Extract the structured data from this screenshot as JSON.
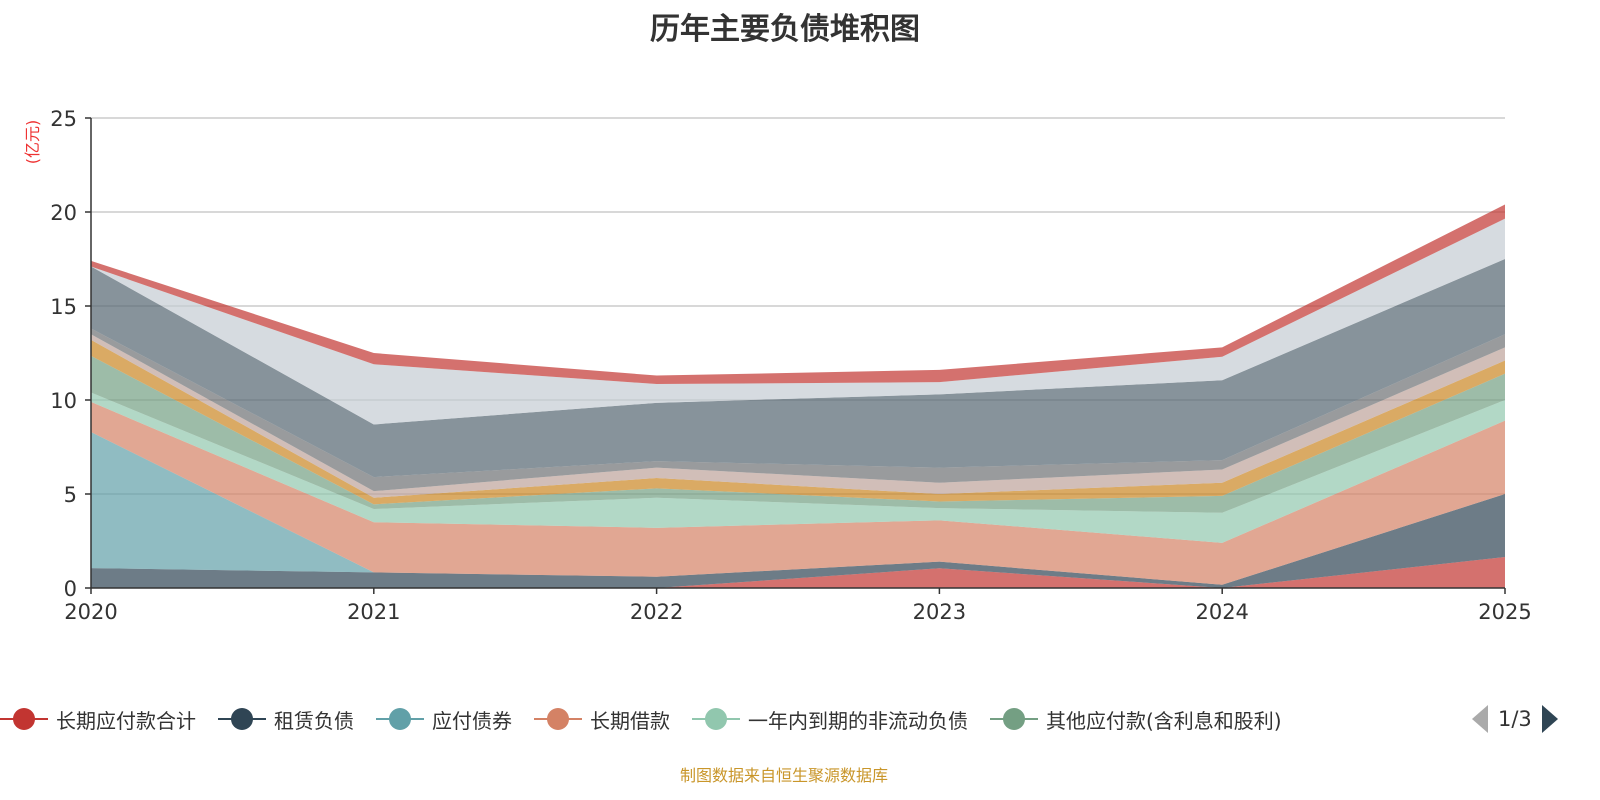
{
  "chart_data": {
    "type": "area",
    "stacked": true,
    "title": "历年主要负债堆积图",
    "ylabel": "(亿元)",
    "xlabel": "",
    "categories": [
      "2020",
      "2021",
      "2022",
      "2023",
      "2024",
      "2025"
    ],
    "ylim": [
      0,
      25
    ],
    "yticks": [
      "0",
      "5",
      "10",
      "15",
      "20",
      "25"
    ],
    "grid": true,
    "legend_position": "bottom",
    "series": [
      {
        "name": "长期应付款合计",
        "color": "#c23531",
        "values": [
          0,
          0,
          0,
          1.05,
          0,
          1.65
        ]
      },
      {
        "name": "租赁负债",
        "color": "#2f4554",
        "values": [
          1.06,
          0.83,
          0.6,
          0.35,
          0.17,
          3.35
        ]
      },
      {
        "name": "应付债券",
        "color": "#61a0a8",
        "values": [
          7.24,
          0,
          0,
          0,
          0,
          0
        ]
      },
      {
        "name": "长期借款",
        "color": "#d48265",
        "values": [
          1.6,
          2.67,
          2.6,
          2.2,
          2.23,
          3.9
        ]
      },
      {
        "name": "一年内到期的非流动负债",
        "color": "#91c7ae",
        "values": [
          0.5,
          0.7,
          1.6,
          0.65,
          1.6,
          1.1
        ]
      },
      {
        "name": "其他应付款(含利息和股利)",
        "color": "#749f83",
        "values": [
          1.95,
          0.25,
          0.5,
          0.35,
          0.9,
          1.4
        ]
      },
      {
        "color": "#ca8622",
        "values": [
          0.85,
          0.35,
          0.55,
          0.4,
          0.7,
          0.7
        ]
      },
      {
        "color": "#bda29a",
        "values": [
          0.3,
          0.35,
          0.55,
          0.6,
          0.7,
          0.7
        ]
      },
      {
        "color": "#6e7074",
        "values": [
          0.3,
          0.75,
          0.35,
          0.8,
          0.5,
          0.7
        ]
      },
      {
        "color": "#546570",
        "values": [
          3.3,
          2.8,
          3.1,
          3.9,
          4.25,
          4.0
        ]
      },
      {
        "color": "#c4ccd3",
        "values": [
          0,
          3.2,
          1.0,
          0.65,
          1.25,
          2.15
        ]
      },
      {
        "color": "#c23531",
        "values": [
          0.3,
          0.6,
          0.45,
          0.65,
          0.5,
          0.75
        ]
      }
    ]
  },
  "legend": {
    "page": "1/3"
  },
  "footer": "制图数据来自恒生聚源数据库"
}
